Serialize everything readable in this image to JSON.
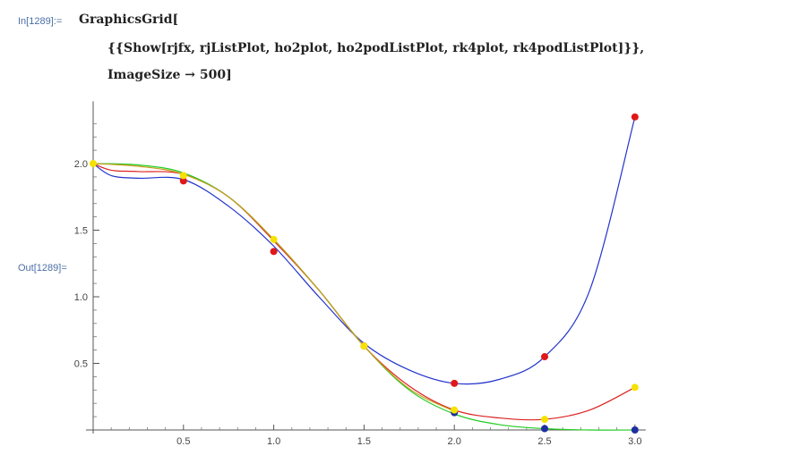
{
  "notebook": {
    "input_label": "In[1289]:=",
    "output_label": "Out[1289]=",
    "code_lines": [
      "GraphicsGrid[",
      "{{Show[rjfx, rjListPlot, ho2plot, ho2podListPlot, rk4plot, rk4podListPlot]}},",
      "ImageSize → 500]"
    ]
  },
  "chart_data": {
    "type": "line",
    "xlim": [
      0,
      3
    ],
    "ylim": [
      0,
      2.4
    ],
    "x_ticks": [
      "0.5",
      "1.0",
      "1.5",
      "2.0",
      "2.5",
      "3.0"
    ],
    "y_ticks": [
      "0.5",
      "1.0",
      "1.5",
      "2.0"
    ],
    "curves": [
      {
        "color": "#2233cc",
        "points": [
          [
            0,
            2.0
          ],
          [
            0.1,
            1.91
          ],
          [
            0.25,
            1.89
          ],
          [
            0.5,
            1.88
          ],
          [
            0.75,
            1.68
          ],
          [
            1.0,
            1.38
          ],
          [
            1.25,
            1.0
          ],
          [
            1.5,
            0.65
          ],
          [
            1.75,
            0.45
          ],
          [
            2.0,
            0.35
          ],
          [
            2.25,
            0.38
          ],
          [
            2.5,
            0.55
          ],
          [
            2.75,
            1.05
          ],
          [
            3.0,
            2.35
          ]
        ]
      },
      {
        "color": "#dd2222",
        "points": [
          [
            0,
            2.0
          ],
          [
            0.1,
            1.95
          ],
          [
            0.25,
            1.94
          ],
          [
            0.5,
            1.92
          ],
          [
            0.75,
            1.75
          ],
          [
            1.0,
            1.42
          ],
          [
            1.25,
            1.05
          ],
          [
            1.5,
            0.63
          ],
          [
            1.75,
            0.33
          ],
          [
            2.0,
            0.15
          ],
          [
            2.25,
            0.09
          ],
          [
            2.5,
            0.08
          ],
          [
            2.75,
            0.15
          ],
          [
            3.0,
            0.32
          ]
        ]
      },
      {
        "color": "#22cc22",
        "points": [
          [
            0,
            2.0
          ],
          [
            0.25,
            1.99
          ],
          [
            0.5,
            1.93
          ],
          [
            0.75,
            1.75
          ],
          [
            1.0,
            1.43
          ],
          [
            1.25,
            1.05
          ],
          [
            1.5,
            0.63
          ],
          [
            1.75,
            0.3
          ],
          [
            2.0,
            0.12
          ],
          [
            2.25,
            0.04
          ],
          [
            2.5,
            0.01
          ],
          [
            2.75,
            0.0
          ],
          [
            3.0,
            0.0
          ]
        ]
      },
      {
        "color": "#c89a1a",
        "points": [
          [
            0,
            2.0
          ],
          [
            0.25,
            1.98
          ],
          [
            0.5,
            1.92
          ],
          [
            0.75,
            1.75
          ],
          [
            1.0,
            1.43
          ],
          [
            1.25,
            1.05
          ],
          [
            1.5,
            0.63
          ],
          [
            1.75,
            0.31
          ],
          [
            2.0,
            0.14
          ]
        ]
      }
    ],
    "markers": [
      {
        "color": "#1f2fa0",
        "points": [
          [
            2.0,
            0.13
          ],
          [
            2.5,
            0.01
          ],
          [
            3.0,
            0.0
          ]
        ]
      },
      {
        "color": "#e01818",
        "points": [
          [
            0.5,
            1.87
          ],
          [
            1.0,
            1.34
          ],
          [
            1.5,
            0.63
          ],
          [
            2.0,
            0.35
          ],
          [
            2.5,
            0.55
          ],
          [
            3.0,
            2.35
          ]
        ]
      },
      {
        "color": "#f5e200",
        "points": [
          [
            0,
            2.0
          ],
          [
            0.5,
            1.91
          ],
          [
            1.0,
            1.43
          ],
          [
            1.5,
            0.63
          ],
          [
            2.0,
            0.15
          ],
          [
            2.5,
            0.08
          ],
          [
            3.0,
            0.32
          ]
        ]
      }
    ]
  }
}
